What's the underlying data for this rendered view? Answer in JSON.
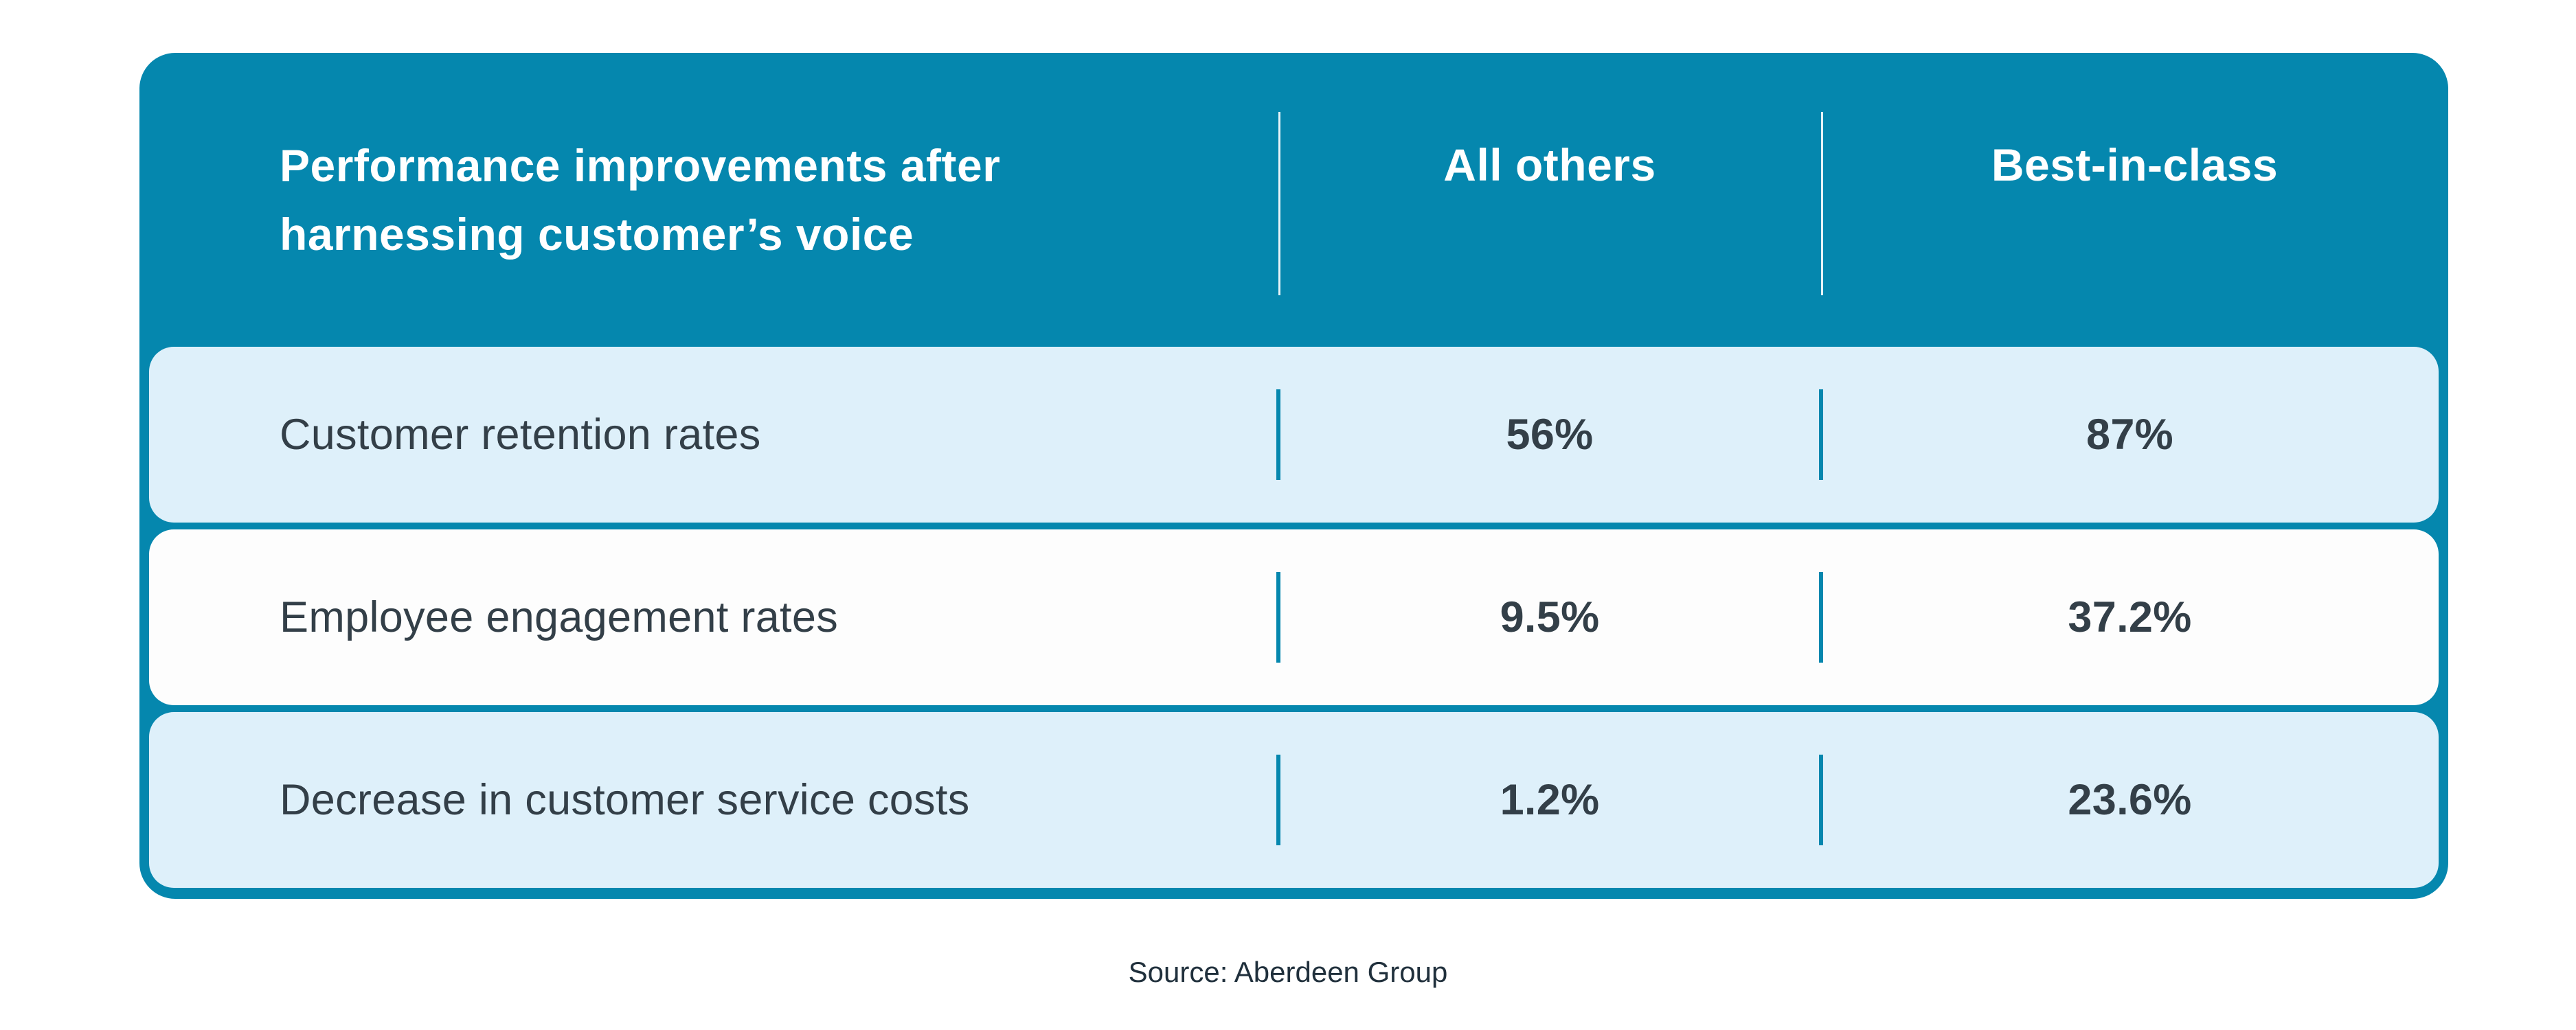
{
  "colors": {
    "teal": "#0587ae",
    "row_alt": "#def0fa",
    "row_plain": "#fdfdfd",
    "text_dark": "#333f48",
    "header_text": "#ffffff"
  },
  "table": {
    "header": {
      "title_lines": [
        "Performance improvements after",
        "harnessing customer’s voice"
      ],
      "columns": [
        "All others",
        "Best-in-class"
      ]
    },
    "rows": [
      {
        "label": "Customer retention rates",
        "values": [
          "56%",
          "87%"
        ]
      },
      {
        "label": "Employee engagement rates",
        "values": [
          "9.5%",
          "37.2%"
        ]
      },
      {
        "label": "Decrease in customer service costs",
        "values": [
          "1.2%",
          "23.6%"
        ]
      }
    ]
  },
  "source": "Source: Aberdeen Group",
  "chart_data": {
    "type": "table",
    "title": "Performance improvements after harnessing customer’s voice",
    "columns": [
      "All others",
      "Best-in-class"
    ],
    "categories": [
      "Customer retention rates",
      "Employee engagement rates",
      "Decrease in customer service costs"
    ],
    "series": [
      {
        "name": "All others",
        "values": [
          56,
          9.5,
          1.2
        ]
      },
      {
        "name": "Best-in-class",
        "values": [
          87,
          37.2,
          23.6
        ]
      }
    ],
    "value_format": "percent",
    "source": "Source: Aberdeen Group"
  }
}
